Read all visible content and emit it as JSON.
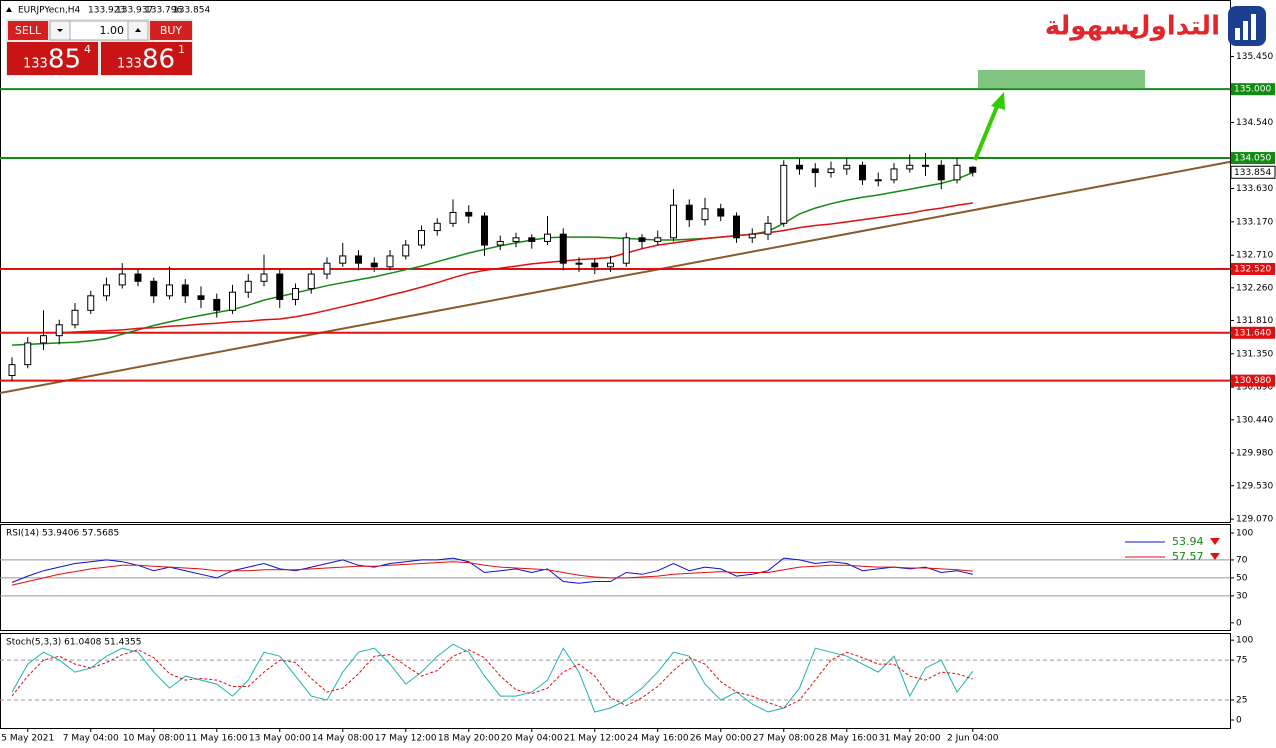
{
  "header": {
    "symbol": "EURJPYecn,H4",
    "prices": [
      133.923,
      133.937,
      133.796,
      133.854
    ]
  },
  "trade_panel": {
    "sell": "SELL",
    "buy": "BUY",
    "lot": "1.00",
    "bid": {
      "big": "133",
      "main": "85",
      "small": "4"
    },
    "ask": {
      "big": "133",
      "main": "86",
      "small": "1"
    }
  },
  "logo": {
    "word1": "التداول",
    "word2": "بسهولة"
  },
  "chart_data": [
    {
      "type": "candlestick",
      "categories": [
        null,
        "5 May 2021",
        null,
        null,
        null,
        "7 May 04:00",
        null,
        null,
        null,
        "10 May 08:00",
        null,
        null,
        null,
        "11 May 16:00",
        null,
        null,
        null,
        "13 May 00:00",
        null,
        null,
        null,
        "14 May 08:00",
        null,
        null,
        null,
        "17 May 12:00",
        null,
        null,
        null,
        "18 May 20:00",
        null,
        null,
        null,
        "20 May 04:00",
        null,
        null,
        null,
        "21 May 12:00",
        null,
        null,
        null,
        "24 May 16:00",
        null,
        null,
        null,
        "26 May 00:00",
        null,
        null,
        null,
        "27 May 08:00",
        null,
        null,
        null,
        "28 May 16:00",
        null,
        null,
        null,
        "31 May 20:00",
        null,
        null,
        null,
        "2 Jun 04:00"
      ],
      "open": [
        131.05,
        131.2,
        131.5,
        131.6,
        131.75,
        131.95,
        132.15,
        132.3,
        132.45,
        132.35,
        132.15,
        132.3,
        132.15,
        132.1,
        131.95,
        132.2,
        132.35,
        132.45,
        132.1,
        132.25,
        132.45,
        132.6,
        132.7,
        132.6,
        132.55,
        132.7,
        132.85,
        133.05,
        133.15,
        133.3,
        133.25,
        132.85,
        132.9,
        132.95,
        132.9,
        133.0,
        132.6,
        132.6,
        132.55,
        132.6,
        132.95,
        132.9,
        132.95,
        133.4,
        133.2,
        133.35,
        133.25,
        132.95,
        133.0,
        133.15,
        133.95,
        133.9,
        133.85,
        133.9,
        133.95,
        133.75,
        133.75,
        133.9,
        133.95,
        133.95,
        133.75,
        133.923
      ],
      "high": [
        131.3,
        131.58,
        131.95,
        131.82,
        132.05,
        132.22,
        132.4,
        132.6,
        132.52,
        132.4,
        132.55,
        132.38,
        132.28,
        132.18,
        132.3,
        132.45,
        132.72,
        132.52,
        132.32,
        132.5,
        132.68,
        132.88,
        132.78,
        132.68,
        132.78,
        132.92,
        133.12,
        133.22,
        133.48,
        133.4,
        133.3,
        132.98,
        133.02,
        133.0,
        133.25,
        133.08,
        132.68,
        132.66,
        132.7,
        133.02,
        133.0,
        133.05,
        133.62,
        133.48,
        133.5,
        133.42,
        133.3,
        133.08,
        133.25,
        134.02,
        134.05,
        133.98,
        134.0,
        134.05,
        134.0,
        133.85,
        133.98,
        134.1,
        134.12,
        134.02,
        134.05,
        133.937
      ],
      "low": [
        130.98,
        131.15,
        131.4,
        131.48,
        131.7,
        131.9,
        132.08,
        132.25,
        132.28,
        132.05,
        132.1,
        132.05,
        131.98,
        131.85,
        131.9,
        132.12,
        132.28,
        131.98,
        132.02,
        132.18,
        132.38,
        132.55,
        132.5,
        132.48,
        132.5,
        132.65,
        132.8,
        132.98,
        133.1,
        133.15,
        132.7,
        132.78,
        132.82,
        132.8,
        132.85,
        132.5,
        132.48,
        132.45,
        132.48,
        132.55,
        132.8,
        132.85,
        132.9,
        133.1,
        133.12,
        133.18,
        132.88,
        132.88,
        132.92,
        133.1,
        133.82,
        133.65,
        133.78,
        133.82,
        133.68,
        133.66,
        133.7,
        133.85,
        133.8,
        133.62,
        133.7,
        133.796
      ],
      "close": [
        131.2,
        131.5,
        131.6,
        131.75,
        131.95,
        132.15,
        132.3,
        132.45,
        132.35,
        132.15,
        132.3,
        132.15,
        132.1,
        131.95,
        132.2,
        132.35,
        132.45,
        132.1,
        132.25,
        132.45,
        132.6,
        132.7,
        132.6,
        132.55,
        132.7,
        132.85,
        133.05,
        133.15,
        133.3,
        133.25,
        132.85,
        132.9,
        132.95,
        132.9,
        133.0,
        132.6,
        132.6,
        132.55,
        132.6,
        132.95,
        132.9,
        132.95,
        133.4,
        133.2,
        133.35,
        133.25,
        132.95,
        133.0,
        133.15,
        133.95,
        133.9,
        133.85,
        133.9,
        133.95,
        133.75,
        133.75,
        133.9,
        133.95,
        133.95,
        133.75,
        133.95,
        133.854
      ],
      "series": [
        {
          "color": "#138a13",
          "values": [
            131.47,
            131.48,
            131.49,
            131.5,
            131.51,
            131.53,
            131.56,
            131.62,
            131.68,
            131.74,
            131.79,
            131.84,
            131.88,
            131.92,
            131.96,
            132.02,
            132.09,
            132.14,
            132.19,
            132.24,
            132.29,
            132.33,
            132.37,
            132.41,
            132.46,
            132.51,
            132.56,
            132.62,
            132.68,
            132.74,
            132.79,
            132.84,
            132.88,
            132.92,
            132.95,
            132.96,
            132.96,
            132.96,
            132.95,
            132.94,
            132.93,
            132.92,
            132.92,
            132.93,
            132.94,
            132.96,
            132.98,
            133.0,
            133.04,
            133.15,
            133.28,
            133.36,
            133.42,
            133.47,
            133.51,
            133.54,
            133.58,
            133.62,
            133.66,
            133.7,
            133.76,
            133.85
          ]
        },
        {
          "color": "#e01010",
          "values": [
            null,
            null,
            null,
            131.64,
            131.65,
            131.66,
            131.67,
            131.68,
            131.7,
            131.71,
            131.73,
            131.74,
            131.76,
            131.77,
            131.79,
            131.8,
            131.82,
            131.83,
            131.86,
            131.9,
            131.95,
            132.0,
            132.05,
            132.1,
            132.16,
            132.21,
            132.27,
            132.33,
            132.4,
            132.46,
            132.5,
            132.53,
            132.56,
            132.59,
            132.61,
            132.63,
            132.65,
            132.66,
            132.68,
            132.74,
            132.8,
            132.85,
            132.88,
            132.91,
            132.94,
            132.96,
            132.98,
            133.0,
            133.02,
            133.05,
            133.09,
            133.12,
            133.14,
            133.17,
            133.2,
            133.23,
            133.26,
            133.29,
            133.33,
            133.36,
            133.4,
            133.43
          ]
        }
      ],
      "trendline": {
        "color": "#8b5a2b",
        "values": [
          130.84,
          133.33
        ]
      },
      "levels": [
        {
          "value": 135,
          "label": "135.000",
          "color": "#138a13"
        },
        {
          "value": 134.05,
          "label": "134.050",
          "color": "#138a13"
        },
        {
          "value": 132.52,
          "label": "132.520",
          "color": "#e01010"
        },
        {
          "value": 131.64,
          "label": "131.640",
          "color": "#e01010"
        },
        {
          "value": 130.98,
          "label": "130.980",
          "color": "#e01010"
        }
      ],
      "current_price": 133.854,
      "ylim": [
        129.03,
        136.23
      ],
      "yticks": [
        {
          "value": 135.45,
          "label": "135.450"
        },
        {
          "value": 134.54,
          "label": "134.540"
        },
        {
          "value": 133.63,
          "label": "133.630"
        },
        {
          "value": 133.17,
          "label": "133.170"
        },
        {
          "value": 132.71,
          "label": "132.710"
        },
        {
          "value": 132.26,
          "label": "132.260"
        },
        {
          "value": 131.81,
          "label": "131.810"
        },
        {
          "value": 131.35,
          "label": "131.350"
        },
        {
          "value": 130.89,
          "label": "130.890"
        },
        {
          "value": 130.44,
          "label": "130.440"
        },
        {
          "value": 129.98,
          "label": "129.980"
        },
        {
          "value": 129.53,
          "label": "129.530"
        },
        {
          "value": 129.07,
          "label": "129.070"
        }
      ]
    },
    {
      "type": "line",
      "title": "RSI(14) 53.9406 57.5685",
      "series": [
        {
          "color": "#1010c8",
          "legend_value": 53.94,
          "values": [
            45,
            52,
            58,
            62,
            66,
            68,
            70,
            68,
            64,
            58,
            62,
            58,
            54,
            50,
            58,
            62,
            66,
            60,
            58,
            62,
            66,
            70,
            64,
            62,
            66,
            68,
            70,
            70,
            72,
            68,
            56,
            58,
            60,
            56,
            60,
            46,
            44,
            46,
            46,
            56,
            54,
            58,
            66,
            58,
            62,
            60,
            52,
            54,
            58,
            72,
            70,
            66,
            68,
            66,
            58,
            60,
            62,
            60,
            62,
            56,
            58,
            53.9406
          ]
        },
        {
          "color": "#e01010",
          "legend_value": 57.57,
          "values": [
            42,
            46,
            50,
            54,
            57,
            60,
            62,
            64,
            64,
            63,
            62,
            61,
            60,
            58,
            58,
            58,
            59,
            59,
            59,
            60,
            61,
            62,
            63,
            63,
            64,
            65,
            66,
            67,
            68,
            67,
            64,
            62,
            61,
            60,
            59,
            56,
            53,
            51,
            50,
            50,
            51,
            52,
            54,
            55,
            56,
            57,
            56,
            56,
            56,
            59,
            62,
            63,
            64,
            64,
            63,
            62,
            62,
            61,
            61,
            60,
            59,
            57.5685
          ]
        }
      ],
      "levels": [
        70,
        50,
        30
      ],
      "ylim": [
        -8,
        110
      ],
      "yticks": [
        100,
        70,
        50,
        30,
        0
      ]
    },
    {
      "type": "line",
      "title": "Stoch(5,3,3) 61.0408 51.4355",
      "series": [
        {
          "color": "#20b2aa",
          "values": [
            35,
            70,
            85,
            75,
            60,
            65,
            80,
            90,
            85,
            60,
            40,
            55,
            50,
            45,
            30,
            50,
            85,
            80,
            55,
            30,
            25,
            60,
            85,
            90,
            70,
            45,
            60,
            80,
            95,
            85,
            55,
            30,
            30,
            35,
            50,
            90,
            60,
            10,
            15,
            25,
            40,
            60,
            85,
            80,
            45,
            25,
            35,
            20,
            10,
            15,
            40,
            90,
            85,
            80,
            70,
            60,
            80,
            30,
            65,
            75,
            35,
            61.0408
          ]
        },
        {
          "color": "#e01010",
          "dashed": true,
          "values": [
            30,
            55,
            75,
            80,
            70,
            65,
            72,
            82,
            88,
            78,
            58,
            50,
            52,
            50,
            42,
            42,
            60,
            75,
            72,
            52,
            35,
            40,
            58,
            80,
            82,
            68,
            55,
            62,
            80,
            88,
            78,
            55,
            38,
            33,
            40,
            60,
            70,
            55,
            28,
            18,
            28,
            42,
            62,
            78,
            70,
            48,
            35,
            30,
            22,
            15,
            25,
            50,
            75,
            85,
            78,
            70,
            70,
            55,
            50,
            60,
            58,
            51.4355
          ]
        }
      ],
      "levels": [
        75,
        25
      ],
      "ylim": [
        -10,
        109
      ],
      "yticks": [
        100,
        75,
        25,
        0
      ]
    }
  ]
}
